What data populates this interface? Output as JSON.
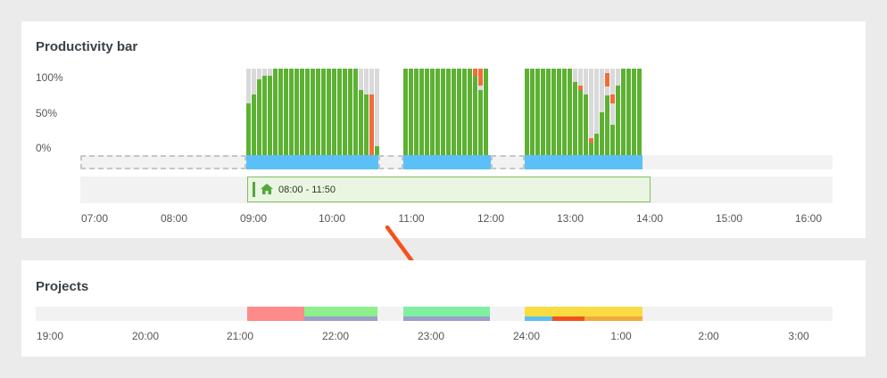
{
  "productivity": {
    "title": "Productivity bar",
    "y_labels": [
      "100%",
      "50%",
      "0%"
    ],
    "x_ticks": [
      "07:00",
      "08:00",
      "09:00",
      "10:00",
      "11:00",
      "12:00",
      "13:00",
      "14:00",
      "15:00",
      "16:00"
    ],
    "schedule": {
      "label": "08:00 - 11:50",
      "icon": "home-icon"
    }
  },
  "projects": {
    "title": "Projects",
    "x_ticks": [
      "19:00",
      "20:00",
      "21:00",
      "22:00",
      "23:00",
      "24:00",
      "1:00",
      "2:00",
      "3:00"
    ]
  },
  "colors": {
    "productive": "#5db132",
    "unproductive": "#f26c3a",
    "neutral": "#d9d9d9",
    "activity": "#5bc0f8",
    "arrow": "#f4511e",
    "schedule_accent": "#53a83a"
  }
}
